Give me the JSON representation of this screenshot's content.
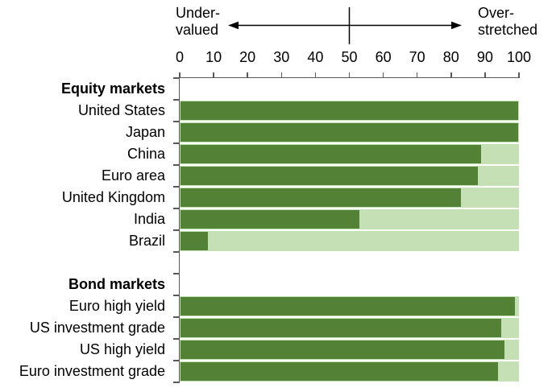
{
  "chart_data": {
    "type": "bar",
    "orientation": "horizontal",
    "scale_labels": {
      "left_line1": "Under-",
      "left_line2": "valued",
      "right_line1": "Over-",
      "right_line2": "stretched"
    },
    "value_axis": {
      "min": 0,
      "max": 100,
      "ticks": [
        0,
        10,
        20,
        30,
        40,
        50,
        60,
        70,
        80,
        90,
        100
      ],
      "midline": 50,
      "position": "top"
    },
    "sections": [
      {
        "header": "Equity markets",
        "rows": [
          {
            "label": "United States",
            "value": 100
          },
          {
            "label": "Japan",
            "value": 100
          },
          {
            "label": "China",
            "value": 89
          },
          {
            "label": "Euro area",
            "value": 88
          },
          {
            "label": "United Kingdom",
            "value": 83
          },
          {
            "label": "India",
            "value": 53
          },
          {
            "label": "Brazil",
            "value": 8
          }
        ]
      },
      {
        "header": "Bond markets",
        "rows": [
          {
            "label": "Euro high yield",
            "value": 99
          },
          {
            "label": "US investment grade",
            "value": 95
          },
          {
            "label": "US high yield",
            "value": 96
          },
          {
            "label": "Euro investment grade",
            "value": 94
          }
        ]
      }
    ],
    "colors": {
      "bar_fill": "#538135",
      "bar_remainder": "#C5E0B4",
      "axis_line": "#595959",
      "text": "#000000"
    }
  }
}
